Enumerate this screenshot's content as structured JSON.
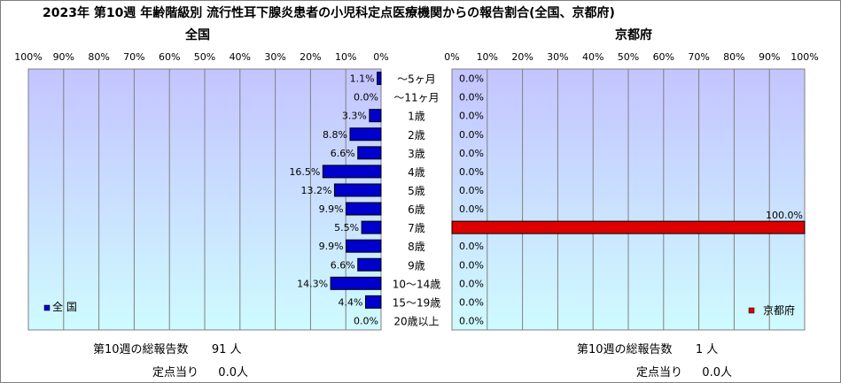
{
  "title": "2023年 第10週 年齢階級別 流行性耳下腺炎患者の小児科定点医療機関からの報告割合(全国、京都府)",
  "chart_data": [
    {
      "type": "bar",
      "orientation": "horizontal-reversed",
      "title": "全国",
      "categories": [
        "～5ヶ月",
        "～11ヶ月",
        "1歳",
        "2歳",
        "3歳",
        "4歳",
        "5歳",
        "6歳",
        "7歳",
        "8歳",
        "9歳",
        "10～14歳",
        "15～19歳",
        "20歳以上"
      ],
      "series": [
        {
          "name": "全 国",
          "color": "#0000cc",
          "values": [
            1.1,
            0.0,
            3.3,
            8.8,
            6.6,
            16.5,
            13.2,
            9.9,
            5.5,
            9.9,
            6.6,
            14.3,
            4.4,
            0.0
          ],
          "labels": [
            "1.1%",
            "0.0%",
            "3.3%",
            "8.8%",
            "6.6%",
            "16.5%",
            "13.2%",
            "9.9%",
            "5.5%",
            "9.9%",
            "6.6%",
            "14.3%",
            "4.4%",
            "0.0%"
          ]
        }
      ],
      "xlim": [
        0,
        100
      ],
      "ticks": [
        "100%",
        "90%",
        "80%",
        "70%",
        "60%",
        "50%",
        "40%",
        "30%",
        "20%",
        "10%",
        "0%"
      ],
      "legend": "bottom-left",
      "grid": true
    },
    {
      "type": "bar",
      "orientation": "horizontal",
      "title": "京都府",
      "categories": [
        "～5ヶ月",
        "～11ヶ月",
        "1歳",
        "2歳",
        "3歳",
        "4歳",
        "5歳",
        "6歳",
        "7歳",
        "8歳",
        "9歳",
        "10～14歳",
        "15～19歳",
        "20歳以上"
      ],
      "series": [
        {
          "name": "京都府",
          "color": "#dd0000",
          "values": [
            0,
            0,
            0,
            0,
            0,
            0,
            0,
            0,
            100,
            0,
            0,
            0,
            0,
            0
          ],
          "labels": [
            "0.0%",
            "0.0%",
            "0.0%",
            "0.0%",
            "0.0%",
            "0.0%",
            "0.0%",
            "0.0%",
            "100.0%",
            "0.0%",
            "0.0%",
            "0.0%",
            "0.0%",
            "0.0%"
          ]
        }
      ],
      "xlim": [
        0,
        100
      ],
      "ticks": [
        "0%",
        "10%",
        "20%",
        "30%",
        "40%",
        "50%",
        "60%",
        "70%",
        "80%",
        "90%",
        "100%"
      ],
      "legend": "bottom-right",
      "grid": true
    }
  ],
  "footer": {
    "national": {
      "total_label": "第10週の総報告数",
      "total_value": "91 人",
      "per_site_label": "定点当り",
      "per_site_value": "0.0人"
    },
    "kyoto": {
      "total_label": "第10週の総報告数",
      "total_value": "1 人",
      "per_site_label": "定点当り",
      "per_site_value": "0.0人"
    }
  },
  "colors": {
    "plot_bg_top": "#c4c4ff",
    "plot_bg_bottom": "#cffbff",
    "national_bar": "#0000cc",
    "kyoto_bar": "#dd0000"
  }
}
